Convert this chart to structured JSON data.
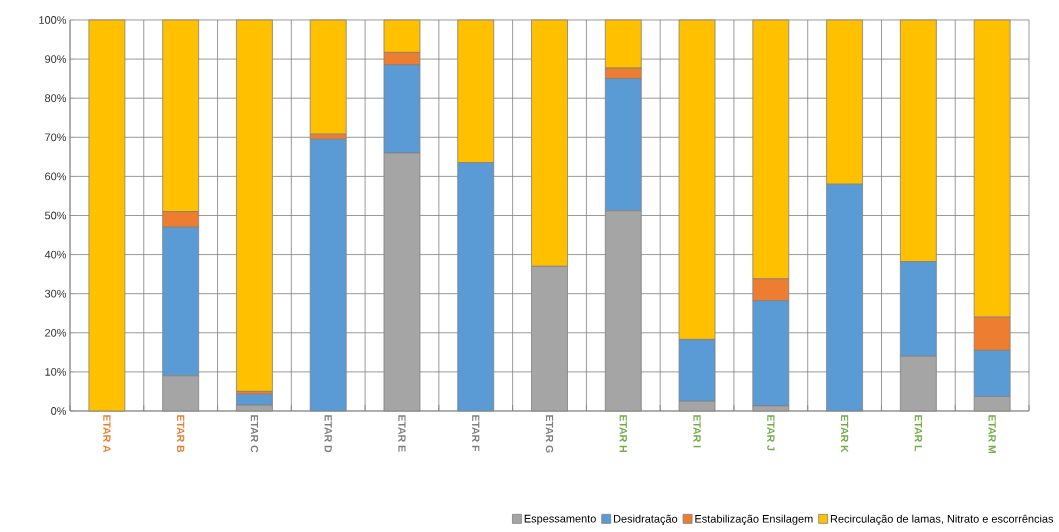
{
  "chart_data": {
    "type": "bar",
    "stacked": true,
    "categories": [
      "ETAR A",
      "ETAR B",
      "ETAR C",
      "ETAR D",
      "ETAR E",
      "ETAR F",
      "ETAR G",
      "ETAR H",
      "ETAR I",
      "ETAR J",
      "ETAR K",
      "ETAR L",
      "ETAR M"
    ],
    "series": [
      {
        "name": "Espessamento",
        "color": "#a5a5a5",
        "values": [
          0,
          9,
          1.5,
          0,
          66,
          0,
          37,
          51.2,
          2.5,
          1.3,
          0,
          14,
          3.7
        ]
      },
      {
        "name": "Desidratação",
        "color": "#5b9bd5",
        "values": [
          0,
          38,
          2.8,
          69.5,
          22.5,
          63.5,
          0,
          33.8,
          15.8,
          26.9,
          58,
          24.2,
          11.8
        ]
      },
      {
        "name": "Estabilização Ensilagem",
        "color": "#ed7d31",
        "values": [
          0,
          4,
          0.7,
          1.3,
          3.2,
          0,
          0,
          2.7,
          0,
          5.6,
          0,
          0,
          8.5
        ]
      },
      {
        "name": "Recirculação de lamas, Nitrato e escorrências",
        "color": "#ffc000",
        "values": [
          100,
          49,
          95,
          29.2,
          8.3,
          36.5,
          63,
          12.3,
          81.7,
          66.2,
          42,
          61.8,
          76
        ]
      }
    ],
    "ylim": [
      0,
      100
    ],
    "yticks": [
      {
        "value": 0,
        "label": "0%"
      },
      {
        "value": 10,
        "label": "10%"
      },
      {
        "value": 20,
        "label": "20%"
      },
      {
        "value": 30,
        "label": "30%"
      },
      {
        "value": 40,
        "label": "40%"
      },
      {
        "value": 50,
        "label": "50%"
      },
      {
        "value": 60,
        "label": "60%"
      },
      {
        "value": 70,
        "label": "70%"
      },
      {
        "value": 80,
        "label": "80%"
      },
      {
        "value": 90,
        "label": "90%"
      },
      {
        "value": 100,
        "label": "100%"
      }
    ],
    "grid": true,
    "legend": "bottom"
  }
}
